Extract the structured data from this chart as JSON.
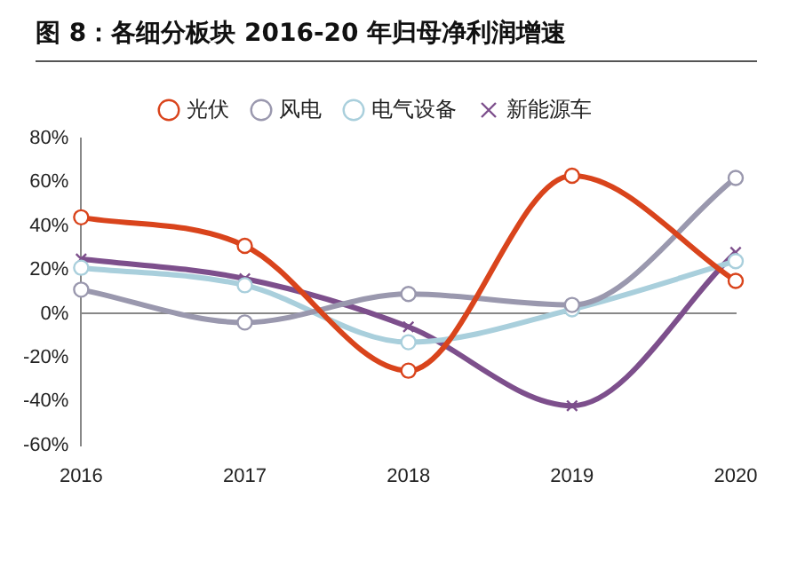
{
  "chart_data": {
    "type": "line",
    "title": "图 8：各细分板块 2016-20 年归母净利润增速",
    "categories": [
      "2016",
      "2017",
      "2018",
      "2019",
      "2020"
    ],
    "series": [
      {
        "name": "光伏",
        "color": "#d9441c",
        "marker": "circle",
        "values": [
          44,
          31,
          -26,
          63,
          15
        ]
      },
      {
        "name": "风电",
        "color": "#9a98ae",
        "marker": "circle",
        "values": [
          11,
          -4,
          9,
          4,
          62
        ]
      },
      {
        "name": "电气设备",
        "color": "#a9cfdc",
        "marker": "circle",
        "values": [
          21,
          13,
          -13,
          2,
          24
        ]
      },
      {
        "name": "新能源车",
        "color": "#7d4f8c",
        "marker": "cross",
        "values": [
          25,
          16,
          -6,
          -42,
          28
        ]
      }
    ],
    "ylim": [
      -60,
      80
    ],
    "yticks": [
      {
        "value": -60,
        "label": "-60%"
      },
      {
        "value": -40,
        "label": "-40%"
      },
      {
        "value": -20,
        "label": "-20%"
      },
      {
        "value": 0,
        "label": "0%"
      },
      {
        "value": 20,
        "label": "20%"
      },
      {
        "value": 40,
        "label": "40%"
      },
      {
        "value": 60,
        "label": "60%"
      },
      {
        "value": 80,
        "label": "80%"
      }
    ],
    "legend": "top",
    "line_style": "solid"
  }
}
